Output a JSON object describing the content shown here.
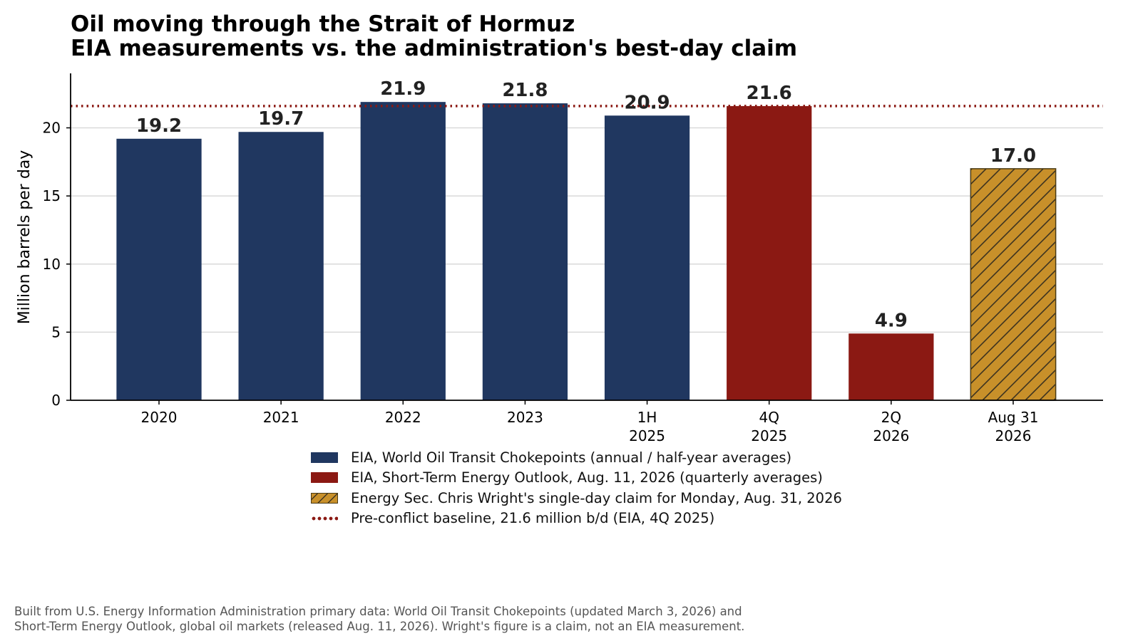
{
  "title": "Oil moving through the Strait of Hormuz",
  "subtitle": "EIA measurements vs. the administration's best-day claim",
  "chart_data": {
    "type": "bar",
    "ylabel": "Million barrels per day",
    "xlabel": "",
    "ylim": [
      0,
      24
    ],
    "yticks": [
      0,
      5,
      10,
      15,
      20
    ],
    "grid": "horizontal",
    "legend_position": "bottom-center",
    "bars": [
      {
        "label": [
          "2020"
        ],
        "value": 19.2,
        "value_label": "19.2",
        "group": "eia_chokepoints"
      },
      {
        "label": [
          "2021"
        ],
        "value": 19.7,
        "value_label": "19.7",
        "group": "eia_chokepoints"
      },
      {
        "label": [
          "2022"
        ],
        "value": 21.9,
        "value_label": "21.9",
        "group": "eia_chokepoints"
      },
      {
        "label": [
          "2023"
        ],
        "value": 21.8,
        "value_label": "21.8",
        "group": "eia_chokepoints"
      },
      {
        "label": [
          "1H",
          "2025"
        ],
        "value": 20.9,
        "value_label": "20.9",
        "group": "eia_chokepoints"
      },
      {
        "label": [
          "4Q",
          "2025"
        ],
        "value": 21.6,
        "value_label": "21.6",
        "group": "eia_steo"
      },
      {
        "label": [
          "2Q",
          "2026"
        ],
        "value": 4.9,
        "value_label": "4.9",
        "group": "eia_steo"
      },
      {
        "label": [
          "Aug 31",
          "2026"
        ],
        "value": 17.0,
        "value_label": "17.0",
        "group": "wright_claim"
      }
    ],
    "baseline": {
      "value": 21.6,
      "style": "dotted",
      "color": "#8b1913"
    },
    "colors": {
      "eia_chokepoints": "#203760",
      "eia_steo": "#8b1913",
      "wright_claim": "#c8902a",
      "hatch": "#3d3320"
    },
    "legend": [
      {
        "key": "eia_chokepoints",
        "label": "EIA, World Oil Transit Chokepoints (annual / half-year averages)"
      },
      {
        "key": "eia_steo",
        "label": "EIA, Short-Term Energy Outlook, Aug. 11, 2026 (quarterly averages)"
      },
      {
        "key": "wright_claim",
        "label": "Energy Sec. Chris Wright's single-day claim for Monday, Aug. 31, 2026"
      },
      {
        "key": "baseline",
        "label": "Pre-conflict baseline, 21.6 million b/d (EIA, 4Q 2025)"
      }
    ]
  },
  "footnote": [
    "Built from U.S. Energy Information Administration primary data: World Oil Transit Chokepoints (updated March 3, 2026) and",
    "Short-Term Energy Outlook, global oil markets (released Aug. 11, 2026). Wright's figure is a claim, not an EIA measurement."
  ]
}
